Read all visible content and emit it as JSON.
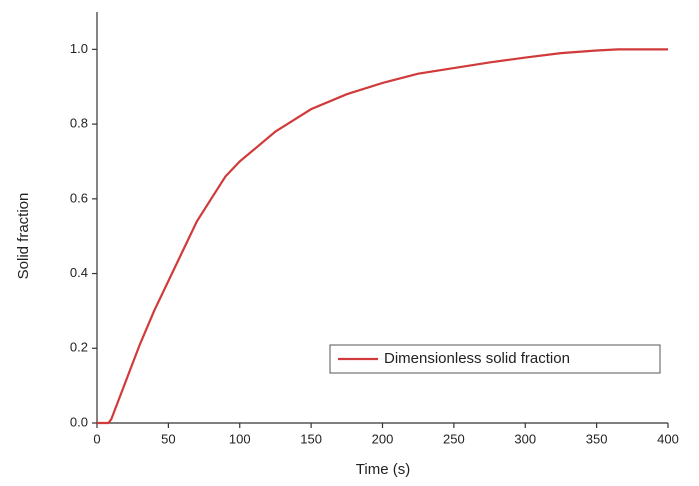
{
  "chart_data": {
    "type": "line",
    "x_label": "Time (s)",
    "y_label": "Solid fraction",
    "x": [
      0,
      8,
      10,
      20,
      30,
      40,
      50,
      60,
      70,
      80,
      90,
      100,
      125,
      150,
      175,
      200,
      225,
      250,
      275,
      300,
      325,
      350,
      365,
      400
    ],
    "series": [
      {
        "name": "Dimensionless solid fraction",
        "color": "#d13a3a",
        "values": [
          0,
          0,
          0.01,
          0.11,
          0.21,
          0.3,
          0.38,
          0.46,
          0.54,
          0.6,
          0.66,
          0.7,
          0.78,
          0.84,
          0.88,
          0.91,
          0.935,
          0.95,
          0.965,
          0.978,
          0.99,
          0.997,
          1.0,
          1.0
        ]
      }
    ],
    "xlim": [
      0,
      400
    ],
    "xticks": [
      0,
      50,
      100,
      150,
      200,
      250,
      300,
      350,
      400
    ],
    "ylim": [
      0,
      1.1
    ],
    "yticks": [
      {
        "value": 0,
        "label": "0.0"
      },
      0.2,
      0.4,
      0.6,
      0.8,
      {
        "value": 1,
        "label": "1.0"
      }
    ],
    "grid": false,
    "legend": "lower-right"
  }
}
